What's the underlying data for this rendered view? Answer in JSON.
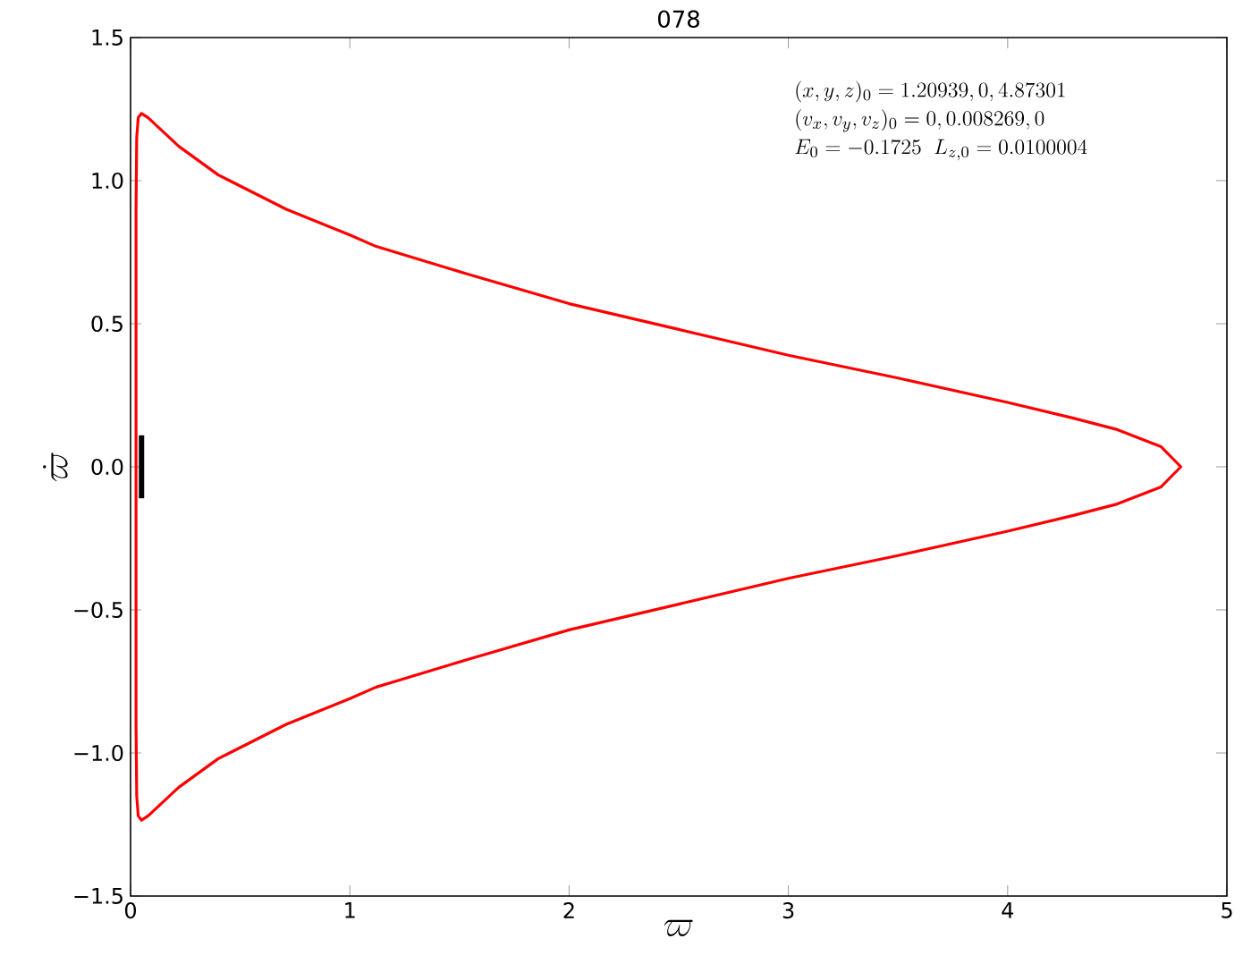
{
  "chart_data": {
    "type": "line",
    "title": "078",
    "xlabel": "\\varpi",
    "ylabel": "\\dot{\\varpi}",
    "annotations": [
      "(x,y,z)_0 = 1.20939, 0, 4.87301",
      "(v_x,v_y,v_z)_0 = 0, 0.008269, 0",
      "E_0 = -0.1725 \\;\\; L_{z,0} = 0.0100004"
    ],
    "xlim": [
      0,
      5
    ],
    "ylim": [
      -1.5,
      1.5
    ],
    "xticks": [
      0,
      1,
      2,
      3,
      4,
      5
    ],
    "yticks": [
      {
        "value": -1.5,
        "label": "−1.5"
      },
      {
        "value": -1.0,
        "label": "−1.0"
      },
      {
        "value": -0.5,
        "label": "−0.5"
      },
      {
        "value": 0,
        "label": "0.0"
      },
      {
        "value": 0.5,
        "label": "0.5"
      },
      {
        "value": 1.0,
        "label": "1.0"
      },
      {
        "value": 1.5,
        "label": "1.5"
      }
    ],
    "grid": false,
    "series": [
      {
        "color": "#ff0000",
        "x": [
          0.025,
          0.025,
          0.028,
          0.035,
          0.05,
          0.08,
          0.22,
          0.4,
          0.71,
          1.0,
          1.12,
          1.53,
          2.0,
          2.5,
          3.0,
          3.5,
          4.0,
          4.3,
          4.5,
          4.7,
          4.79,
          4.7,
          4.5,
          4.3,
          4.0,
          3.5,
          3.0,
          2.5,
          2.0,
          1.53,
          1.12,
          1.0,
          0.71,
          0.4,
          0.22,
          0.08,
          0.05,
          0.035,
          0.028,
          0.025,
          0.025
        ],
        "values": [
          0,
          0.9,
          1.15,
          1.22,
          1.235,
          1.22,
          1.12,
          1.02,
          0.9,
          0.81,
          0.77,
          0.675,
          0.57,
          0.48,
          0.39,
          0.31,
          0.225,
          0.17,
          0.13,
          0.07,
          0,
          -0.07,
          -0.13,
          -0.17,
          -0.225,
          -0.31,
          -0.39,
          -0.48,
          -0.57,
          -0.675,
          -0.77,
          -0.81,
          -0.9,
          -1.02,
          -1.12,
          -1.22,
          -1.235,
          -1.22,
          -1.15,
          -0.9,
          0.05
        ]
      },
      {
        "color": "#000000",
        "x": [
          0.05,
          0.05
        ],
        "values": [
          -0.11,
          0.11
        ]
      }
    ]
  }
}
